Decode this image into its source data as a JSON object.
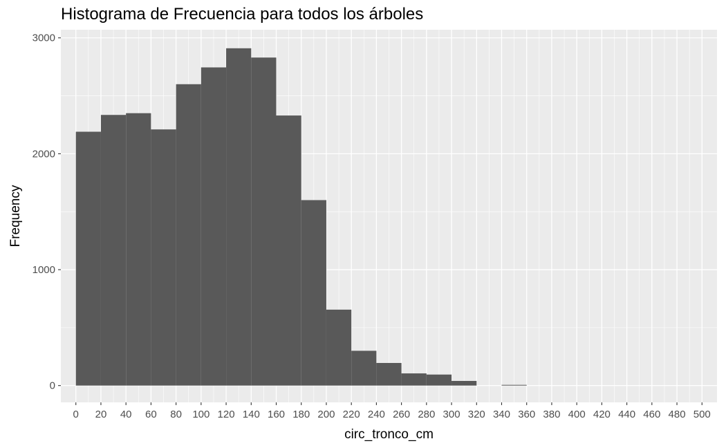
{
  "chart_data": {
    "type": "bar",
    "title": "Histograma de Frecuencia para todos los árboles",
    "xlabel": "circ_tronco_cm",
    "ylabel": "Frequency",
    "bin_width": 20,
    "bins": [
      {
        "x0": 0,
        "x1": 20,
        "count": 2190
      },
      {
        "x0": 20,
        "x1": 40,
        "count": 2335
      },
      {
        "x0": 40,
        "x1": 60,
        "count": 2350
      },
      {
        "x0": 60,
        "x1": 80,
        "count": 2210
      },
      {
        "x0": 80,
        "x1": 100,
        "count": 2600
      },
      {
        "x0": 100,
        "x1": 120,
        "count": 2745
      },
      {
        "x0": 120,
        "x1": 140,
        "count": 2910
      },
      {
        "x0": 140,
        "x1": 160,
        "count": 2830
      },
      {
        "x0": 160,
        "x1": 180,
        "count": 2330
      },
      {
        "x0": 180,
        "x1": 200,
        "count": 1600
      },
      {
        "x0": 200,
        "x1": 220,
        "count": 655
      },
      {
        "x0": 220,
        "x1": 240,
        "count": 300
      },
      {
        "x0": 240,
        "x1": 260,
        "count": 195
      },
      {
        "x0": 260,
        "x1": 280,
        "count": 105
      },
      {
        "x0": 280,
        "x1": 300,
        "count": 95
      },
      {
        "x0": 300,
        "x1": 320,
        "count": 40
      },
      {
        "x0": 320,
        "x1": 340,
        "count": 0
      },
      {
        "x0": 340,
        "x1": 360,
        "count": 6
      }
    ],
    "xlim": [
      -12,
      512
    ],
    "ylim": [
      -145,
      3070
    ],
    "x_ticks": [
      0,
      20,
      40,
      60,
      80,
      100,
      120,
      140,
      160,
      180,
      200,
      220,
      240,
      260,
      280,
      300,
      320,
      340,
      360,
      380,
      400,
      420,
      440,
      460,
      480,
      500
    ],
    "y_ticks": [
      0,
      1000,
      2000,
      3000
    ],
    "grid": true,
    "colors": {
      "bar": "#595959",
      "panel": "#ebebeb",
      "grid_major": "#ffffff"
    }
  }
}
